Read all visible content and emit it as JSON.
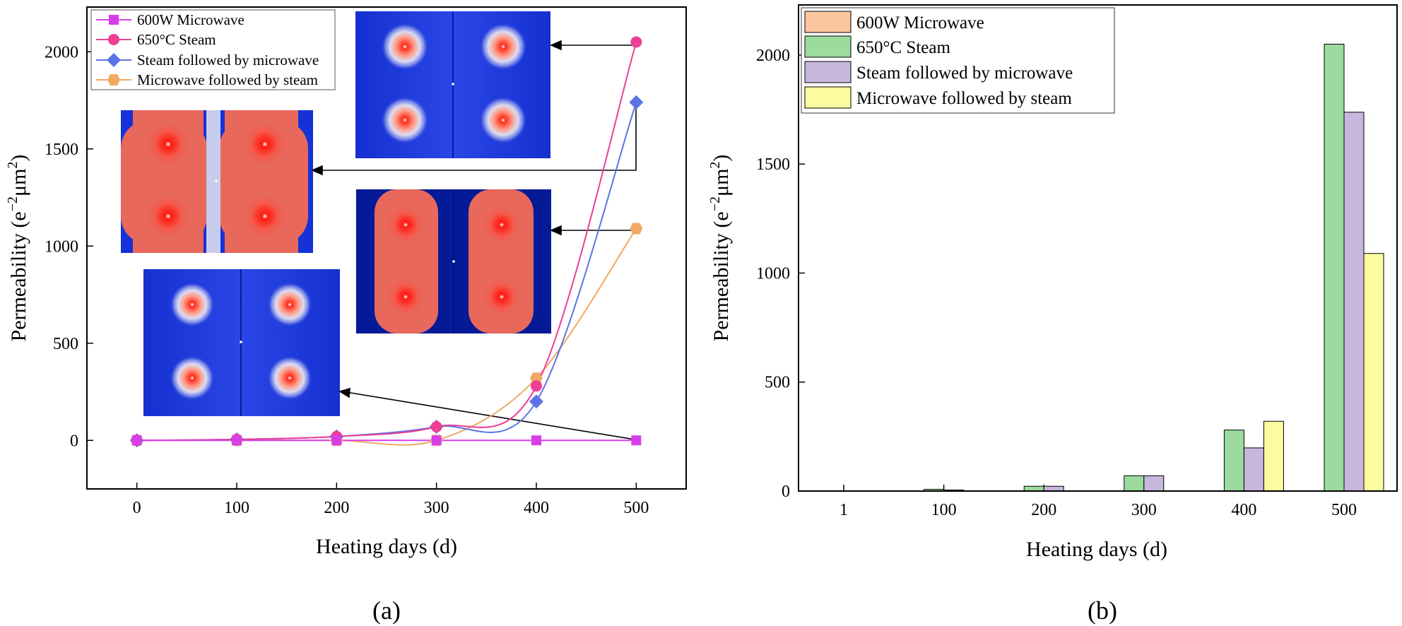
{
  "colors": {
    "microwave": "#d83ee8",
    "steam": "#ec3f95",
    "steam_micro": "#5b73e6",
    "micro_steam": "#f0a863",
    "bar_microwave": "#fbc59d",
    "bar_steam": "#9bdb9e",
    "bar_steam_micro": "#c7b7dc",
    "bar_micro_steam": "#fdfb9f"
  },
  "chart_data": [
    {
      "id": "a",
      "type": "line",
      "panel_label": "(a)",
      "xlabel": "Heating days (d)",
      "ylabel_base": "Permeability (e",
      "ylabel_sup1": "−2",
      "ylabel_mid": "μm",
      "ylabel_sup2": "2",
      "ylabel_end": ")",
      "xlim": [
        -50,
        550
      ],
      "ylim": [
        -250,
        2230
      ],
      "xticks": [
        0,
        100,
        200,
        300,
        400,
        500
      ],
      "yticks": [
        0,
        500,
        1000,
        1500,
        2000
      ],
      "x": [
        0,
        100,
        200,
        300,
        400,
        500
      ],
      "series": [
        {
          "name": "600W Microwave",
          "marker": "square",
          "color_key": "microwave",
          "values": [
            0,
            0,
            0,
            0,
            0,
            0
          ]
        },
        {
          "name": "650°C Steam",
          "marker": "circle",
          "color_key": "steam",
          "values": [
            0,
            5,
            20,
            70,
            280,
            2050
          ]
        },
        {
          "name": "Steam followed by microwave",
          "marker": "diamond",
          "color_key": "steam_micro",
          "values": [
            0,
            5,
            20,
            70,
            200,
            1740
          ]
        },
        {
          "name": "Microwave followed by steam",
          "marker": "hexagon",
          "color_key": "micro_steam",
          "values": [
            0,
            0,
            0,
            0,
            320,
            1090
          ]
        }
      ],
      "legend_position": "top-left",
      "insets": [
        {
          "name": "inset-top-right",
          "style": "blue",
          "points_to": "650°C Steam at 500 d"
        },
        {
          "name": "inset-middle-left",
          "style": "red",
          "points_to": "Steam followed by microwave at 500 d"
        },
        {
          "name": "inset-middle-right",
          "style": "red",
          "points_to": "Microwave followed by steam at 500 d"
        },
        {
          "name": "inset-bottom-left",
          "style": "blue",
          "points_to": "600W Microwave at 500 d"
        }
      ]
    },
    {
      "id": "b",
      "type": "bar",
      "panel_label": "(b)",
      "xlabel": "Heating days (d)",
      "ylabel_base": "Permeability (e",
      "ylabel_sup1": "−2",
      "ylabel_mid": "μm",
      "ylabel_sup2": "2",
      "ylabel_end": ")",
      "categories": [
        "1",
        "100",
        "200",
        "300",
        "400",
        "500"
      ],
      "ylim": [
        0,
        2230
      ],
      "yticks": [
        0,
        500,
        1000,
        1500,
        2000
      ],
      "series": [
        {
          "name": "600W Microwave",
          "color_key": "bar_microwave",
          "values": [
            0,
            0,
            0,
            0,
            0,
            0
          ]
        },
        {
          "name": "650°C Steam",
          "color_key": "bar_steam",
          "values": [
            0,
            8,
            22,
            70,
            280,
            2050
          ]
        },
        {
          "name": "Steam followed by microwave",
          "color_key": "bar_steam_micro",
          "values": [
            0,
            5,
            22,
            70,
            198,
            1738
          ]
        },
        {
          "name": "Microwave followed by steam",
          "color_key": "bar_micro_steam",
          "values": [
            0,
            0,
            0,
            0,
            320,
            1090
          ]
        }
      ],
      "legend_position": "top-left"
    }
  ]
}
